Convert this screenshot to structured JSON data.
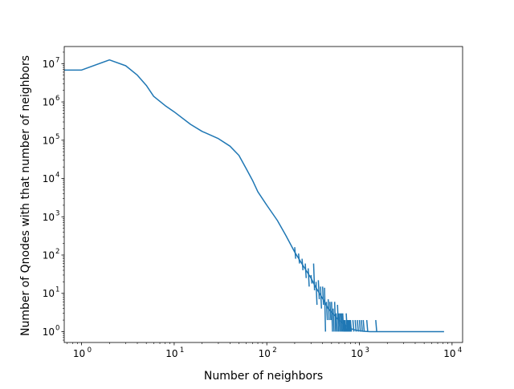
{
  "chart_data": {
    "type": "line",
    "xlabel": "Number of neighbors",
    "ylabel": "Number of Qnodes with that number of neighbors",
    "x_scale": "log",
    "y_scale": "log",
    "xlim": [
      0.65,
      13000
    ],
    "ylim": [
      0.52,
      28000000
    ],
    "grid": false,
    "x_ticks": [
      {
        "base": "10",
        "exp": "0",
        "value": 1
      },
      {
        "base": "10",
        "exp": "1",
        "value": 10
      },
      {
        "base": "10",
        "exp": "2",
        "value": 100
      },
      {
        "base": "10",
        "exp": "3",
        "value": 1000
      },
      {
        "base": "10",
        "exp": "4",
        "value": 10000
      }
    ],
    "y_ticks": [
      {
        "base": "10",
        "exp": "0",
        "value": 1
      },
      {
        "base": "10",
        "exp": "1",
        "value": 10
      },
      {
        "base": "10",
        "exp": "2",
        "value": 100
      },
      {
        "base": "10",
        "exp": "3",
        "value": 1000
      },
      {
        "base": "10",
        "exp": "4",
        "value": 10000
      },
      {
        "base": "10",
        "exp": "5",
        "value": 100000
      },
      {
        "base": "10",
        "exp": "6",
        "value": 1000000
      },
      {
        "base": "10",
        "exp": "7",
        "value": 10000000
      }
    ],
    "series": [
      {
        "color": "#1f77b4",
        "x": [
          0.6,
          1,
          2,
          3,
          4,
          5,
          6,
          8,
          10,
          15,
          20,
          30,
          40,
          50,
          60,
          70,
          80,
          100,
          130,
          160,
          200,
          250,
          300,
          340,
          380,
          420,
          460,
          500,
          550,
          600,
          650,
          700,
          750,
          800,
          900,
          1000,
          1100,
          1300,
          1500,
          2000,
          3000,
          5000,
          8200
        ],
        "y": [
          6800000,
          6800000,
          12500000,
          8800000,
          5000000,
          2700000,
          1400000,
          800000,
          550000,
          260000,
          170000,
          110000,
          70000,
          40000,
          18000,
          9000,
          4500,
          2000,
          800,
          330,
          120,
          50,
          25,
          14,
          9,
          6,
          4,
          3.2,
          2.5,
          2,
          1.7,
          1.5,
          1.3,
          1.2,
          1.1,
          1.05,
          1.02,
          1,
          1,
          1,
          1,
          1,
          1
        ],
        "noise": {
          "x": [
            200,
            220,
            240,
            260,
            280,
            300,
            320,
            340,
            360,
            380,
            400,
            420,
            440,
            460,
            480,
            500,
            520,
            540,
            560,
            580,
            600,
            620,
            640,
            660,
            680,
            700,
            720,
            740,
            760,
            780,
            800,
            850,
            900,
            950,
            1000,
            1050,
            1100,
            1200,
            1500
          ],
          "high": [
            160,
            110,
            80,
            60,
            45,
            30,
            60,
            20,
            22,
            15,
            15,
            14,
            6,
            7,
            6,
            6,
            4,
            6,
            3,
            5,
            3,
            3,
            3,
            3,
            2,
            2,
            3,
            2,
            2,
            2,
            2,
            2,
            2,
            2,
            2,
            2,
            2,
            2,
            2
          ],
          "low": [
            80,
            60,
            40,
            25,
            15,
            18,
            12,
            5,
            7,
            4,
            5,
            1,
            2,
            2,
            2,
            1,
            1,
            1,
            1,
            1,
            1,
            1,
            1,
            1,
            1,
            1,
            1,
            1,
            1,
            1,
            1,
            1,
            1,
            1,
            1,
            1,
            1,
            1,
            1
          ]
        }
      }
    ]
  }
}
